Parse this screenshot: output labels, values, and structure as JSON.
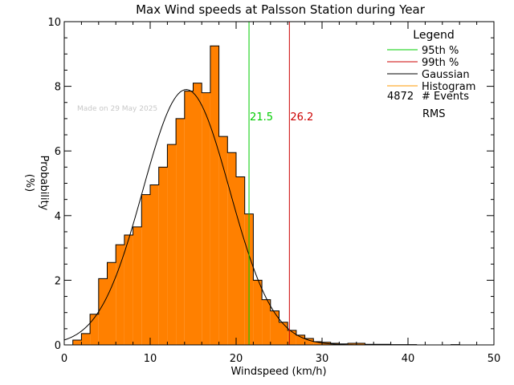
{
  "chart_data": {
    "type": "bar",
    "title": "Max Wind speeds at Palsson Station during Year",
    "xlabel": "Windspeed (km/h)",
    "ylabel_line1": "Probability",
    "ylabel_line2": "(%)",
    "xlim": [
      0,
      50
    ],
    "ylim": [
      0,
      10
    ],
    "xticks": [
      0,
      10,
      20,
      30,
      40,
      50
    ],
    "yticks": [
      0,
      2,
      4,
      6,
      8,
      10
    ],
    "bin_edges_start": 1,
    "bin_width": 1,
    "histogram_values": [
      0.15,
      0.35,
      0.95,
      2.05,
      2.55,
      3.1,
      3.4,
      3.65,
      4.65,
      4.95,
      5.5,
      6.2,
      7.0,
      7.85,
      8.1,
      7.8,
      9.25,
      6.45,
      5.95,
      5.2,
      4.05,
      2.0,
      1.4,
      1.05,
      0.7,
      0.45,
      0.3,
      0.2,
      0.1,
      0.08,
      0.05,
      0.03,
      0.05,
      0.05,
      0.02,
      0.02,
      0.02,
      0.01,
      0.01,
      0.01,
      0.0,
      0.0,
      0.0,
      0.0,
      0.01,
      0.0,
      0.0,
      0.0,
      0.0
    ],
    "gaussian": {
      "mean": 14.2,
      "sigma": 5.05,
      "peak": 7.9,
      "color": "#000000"
    },
    "lines": [
      {
        "name": "95th %",
        "value": 21.5,
        "label": "21.5",
        "color": "#00cc00"
      },
      {
        "name": "99th %",
        "value": 26.2,
        "label": "26.2",
        "color": "#cc0000"
      }
    ],
    "histogram_color": "#ff8000",
    "legend": {
      "title": "Legend",
      "entries": [
        {
          "label": "95th %",
          "color": "#00cc00"
        },
        {
          "label": "99th %",
          "color": "#cc0000"
        },
        {
          "label": "Gaussian",
          "color": "#000000"
        },
        {
          "label": "Histogram",
          "color": "#ff9900"
        }
      ],
      "events_count": "4872",
      "events_label": "# Events",
      "rms_label": "RMS"
    },
    "watermark": "Made on 29 May 2025"
  }
}
